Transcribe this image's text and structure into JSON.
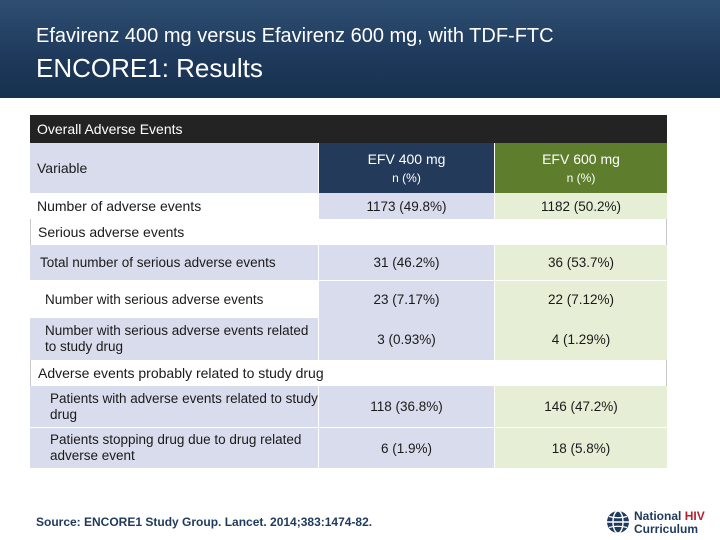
{
  "header": {
    "subtitle": "Efavirenz 400 mg versus Efavirenz 600 mg, with TDF-FTC",
    "title": "ENCORE1: Results"
  },
  "table": {
    "title": "Overall Adverse Events",
    "columns": {
      "variable": "Variable",
      "efv400": "EFV 400 mg",
      "efv400_sub": "n (%)",
      "efv600": "EFV 600 mg",
      "efv600_sub": "n (%)"
    },
    "number_of_events": {
      "label": "Number of adverse events",
      "efv400": "1173 (49.8%)",
      "efv600": "1182 (50.2%)"
    },
    "serious_section": "Serious adverse events",
    "serious_rows": [
      {
        "label": "Total number of serious adverse events",
        "efv400": "31 (46.2%)",
        "efv600": "36 (53.7%)"
      },
      {
        "label": "Number with serious adverse events",
        "efv400": "23 (7.17%)",
        "efv600": "22 (7.12%)"
      },
      {
        "label": "Number with serious adverse events related to study drug",
        "efv400": "3 (0.93%)",
        "efv600": "4 (1.29%)"
      }
    ],
    "related_section": "Adverse events probably related to study drug",
    "related_rows": [
      {
        "label": "Patients with adverse events related to study drug",
        "efv400": "118 (36.8%)",
        "efv600": "146 (47.2%)"
      },
      {
        "label": "Patients stopping drug due to drug related adverse event",
        "efv400": "6 (1.9%)",
        "efv600": "18 (5.8%)"
      }
    ]
  },
  "footer": {
    "source": "Source: ENCORE1 Study Group. Lancet. 2014;383:1474-82.",
    "logo_line1": "National",
    "logo_line1_accent": "HIV",
    "logo_line2": "Curriculum"
  },
  "colors": {
    "header_bg": "#1f3a5c",
    "efv400_header": "#233a5a",
    "efv600_header": "#5e7e2e",
    "efv400_cell": "#d9dcec",
    "efv600_cell": "#e6efd5",
    "logo_accent": "#b8202e"
  }
}
